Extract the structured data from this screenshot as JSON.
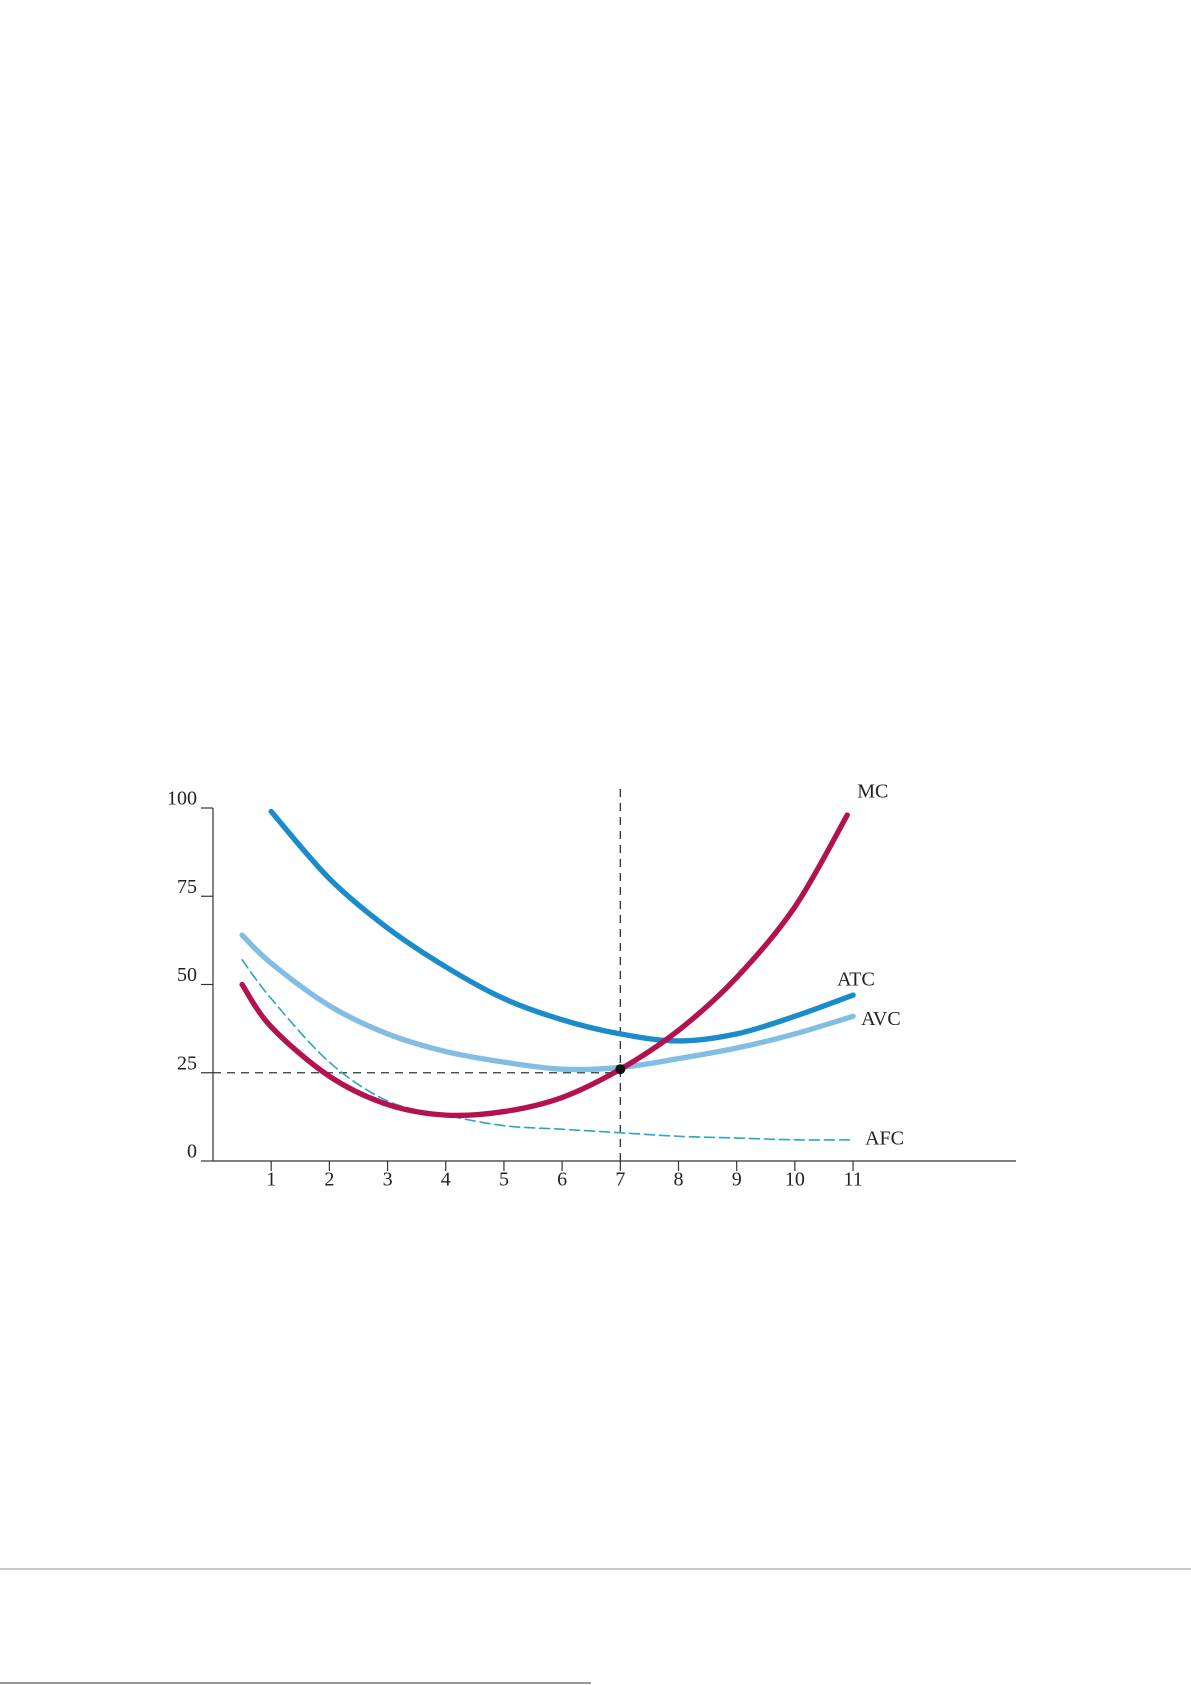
{
  "chart_data": {
    "type": "line",
    "series": [
      {
        "name": "MC",
        "color": "#b3124e",
        "width": 5,
        "dashed": false,
        "x": [
          0.5,
          1,
          2,
          3,
          4,
          5,
          6,
          7,
          8,
          9,
          10,
          10.9
        ],
        "values": [
          50,
          38,
          24,
          16,
          13,
          14,
          18,
          26,
          37,
          52,
          72,
          98
        ]
      },
      {
        "name": "ATC",
        "color": "#1a8ccb",
        "width": 5,
        "dashed": false,
        "x": [
          1,
          2,
          3,
          4,
          5,
          6,
          7,
          8,
          9,
          10,
          11
        ],
        "values": [
          99,
          80,
          66,
          55,
          46,
          40,
          36,
          34,
          36,
          41,
          47
        ]
      },
      {
        "name": "AVC",
        "color": "#82bde3",
        "width": 5,
        "dashed": false,
        "x": [
          0.5,
          1,
          2,
          3,
          4,
          5,
          6,
          7,
          8,
          9,
          10,
          11
        ],
        "values": [
          64,
          56,
          44,
          36,
          31,
          28,
          26,
          26.5,
          29,
          32,
          36,
          41
        ]
      },
      {
        "name": "AFC",
        "color": "#2aa5c8",
        "width": 1.5,
        "dashed": true,
        "x": [
          0.5,
          1,
          2,
          3,
          4,
          5,
          6,
          7,
          8,
          9,
          10,
          11
        ],
        "values": [
          57,
          46,
          28,
          17,
          13,
          10,
          9,
          8,
          7,
          6.5,
          6,
          6
        ]
      }
    ],
    "reference_x": 7,
    "reference_y": 25,
    "point": {
      "x": 7,
      "y": 26
    },
    "xlim": [
      0,
      13.8
    ],
    "ylim": [
      0,
      100
    ],
    "xticks": [
      1,
      2,
      3,
      4,
      5,
      6,
      7,
      8,
      9,
      10,
      11
    ],
    "yticks": [
      0,
      25,
      50,
      75,
      100
    ]
  }
}
